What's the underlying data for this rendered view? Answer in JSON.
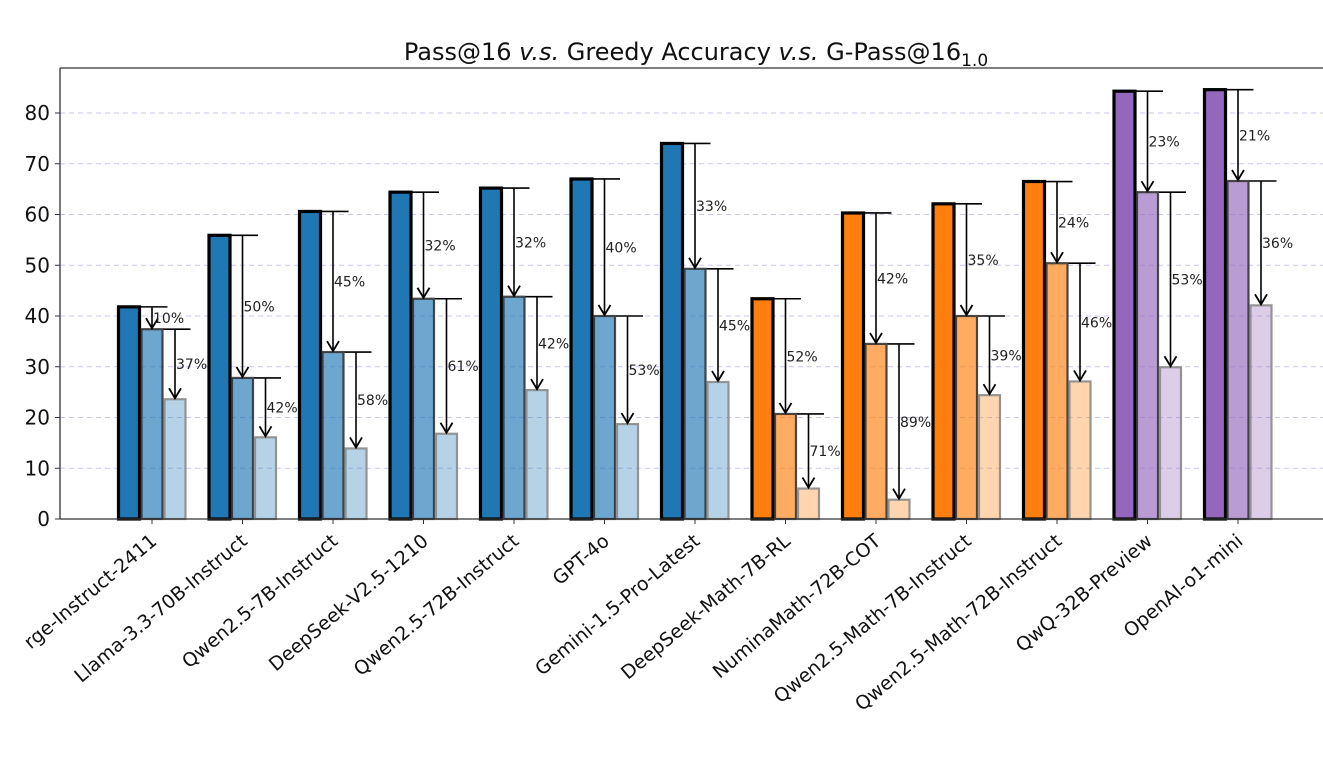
{
  "chart_data": {
    "type": "bar",
    "title": {
      "parts": [
        {
          "text": "Pass@16 ",
          "style": "normal"
        },
        {
          "text": "v.s.",
          "style": "italic"
        },
        {
          "text": " Greedy Accuracy ",
          "style": "normal"
        },
        {
          "text": "v.s.",
          "style": "italic"
        },
        {
          "text": " G-Pass@16",
          "style": "normal"
        },
        {
          "text": "1.0",
          "style": "sub"
        }
      ]
    },
    "xlabel": "",
    "ylabel": "",
    "ylim": [
      0,
      88
    ],
    "yticks": [
      0,
      10,
      20,
      30,
      40,
      50,
      60,
      70,
      80
    ],
    "grid": "horizontal dashed",
    "series_names": [
      "Pass@16",
      "Greedy Accuracy",
      "G-Pass@16_1.0"
    ],
    "categories": [
      "rge-Instruct-2411",
      "Llama-3.3-70B-Instruct",
      "Qwen2.5-7B-Instruct",
      "DeepSeek-V2.5-1210",
      "Qwen2.5-72B-Instruct",
      "GPT-4o",
      "Gemini-1.5-Pro-Latest",
      "DeepSeek-Math-7B-RL",
      "NuminaMath-72B-COT",
      "Qwen2.5-Math-7B-Instruct",
      "Qwen2.5-Math-72B-Instruct",
      "QwQ-32B-Preview",
      "OpenAI-o1-mini"
    ],
    "color_groups": [
      "blue",
      "blue",
      "blue",
      "blue",
      "blue",
      "blue",
      "blue",
      "orange",
      "orange",
      "orange",
      "orange",
      "purple",
      "purple"
    ],
    "colors": {
      "blue": "#1f77b4",
      "orange": "#ff7f0e",
      "purple": "#9467bd"
    },
    "series": [
      {
        "name": "Pass@16",
        "values": [
          41.8,
          55.9,
          60.6,
          64.4,
          65.2,
          67.0,
          74.0,
          43.4,
          60.3,
          62.1,
          66.5,
          84.3,
          84.6
        ]
      },
      {
        "name": "Greedy Accuracy",
        "values": [
          37.4,
          27.8,
          32.9,
          43.4,
          43.8,
          40.0,
          49.3,
          20.7,
          34.5,
          40.0,
          50.4,
          64.4,
          66.6
        ]
      },
      {
        "name": "G-Pass@16_1.0",
        "values": [
          23.6,
          16.1,
          13.9,
          16.8,
          25.4,
          18.7,
          27.0,
          6.0,
          3.8,
          24.4,
          27.1,
          29.9,
          42.1
        ]
      }
    ],
    "annotations": {
      "drop_pass_to_greedy": [
        "10%",
        "50%",
        "45%",
        "32%",
        "32%",
        "40%",
        "33%",
        "52%",
        "42%",
        "35%",
        "24%",
        "23%",
        "21%"
      ],
      "drop_greedy_to_gpass": [
        "37%",
        "42%",
        "58%",
        "61%",
        "42%",
        "53%",
        "45%",
        "71%",
        "89%",
        "39%",
        "46%",
        "53%",
        "36%"
      ]
    }
  }
}
